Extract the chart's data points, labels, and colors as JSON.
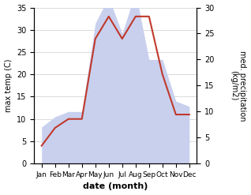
{
  "months": [
    "Jan",
    "Feb",
    "Mar",
    "Apr",
    "May",
    "Jun",
    "Jul",
    "Aug",
    "Sep",
    "Oct",
    "Nov",
    "Dec"
  ],
  "temp": [
    4,
    8,
    10,
    10,
    28,
    33,
    28,
    33,
    33,
    20,
    11,
    11
  ],
  "precip": [
    7,
    9,
    10,
    10,
    27,
    32,
    25,
    33,
    20,
    20,
    12,
    11
  ],
  "temp_color": "#c0392b",
  "precip_fill_color": "#c8d0ee",
  "left_ylabel": "max temp (C)",
  "right_ylabel": "med. precipitation\n(kg/m2)",
  "xlabel": "date (month)",
  "ylim_left": [
    0,
    35
  ],
  "ylim_right": [
    0,
    30
  ],
  "yticks_left": [
    0,
    5,
    10,
    15,
    20,
    25,
    30,
    35
  ],
  "yticks_right": [
    0,
    5,
    10,
    15,
    20,
    25,
    30
  ],
  "grid_color": "#cccccc"
}
